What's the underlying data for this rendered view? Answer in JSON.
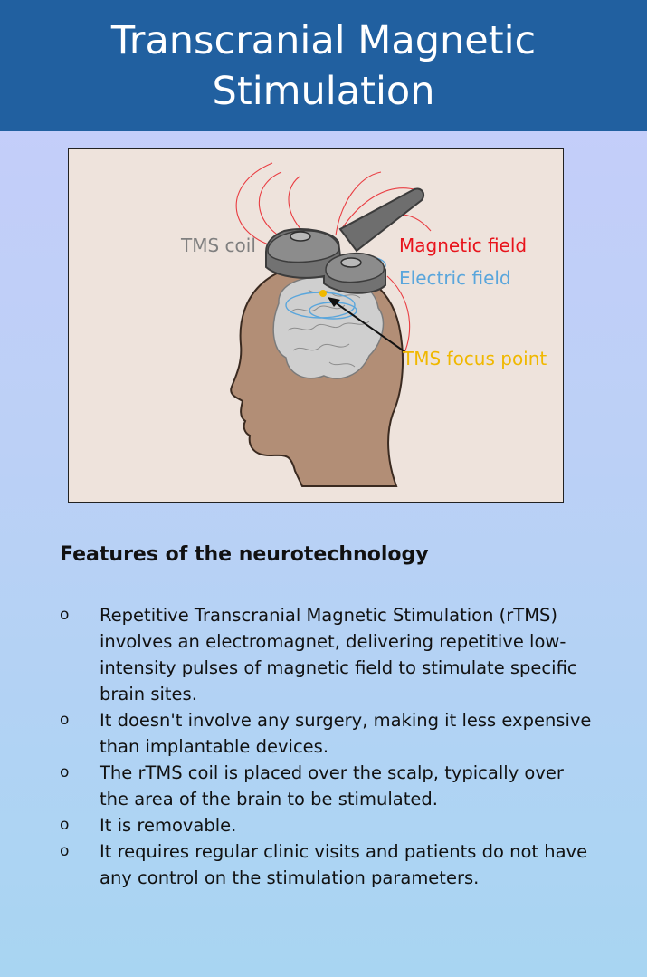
{
  "header": {
    "title": "Transcranial Magnetic Stimulation"
  },
  "figure": {
    "labels": {
      "coil": "TMS coil",
      "magnetic": "Magnetic field",
      "electric": "Electric field",
      "focus": "TMS focus point"
    },
    "colors": {
      "coil": "#808080",
      "magnetic": "#e8141c",
      "electric": "#5aa6dc",
      "focus": "#f0b800"
    }
  },
  "features": {
    "title": "Features of the neurotechnology",
    "bullet": "o",
    "items": [
      "Repetitive Transcranial Magnetic Stimulation (rTMS) involves an electromagnet, delivering repetitive low-intensity pulses of magnetic field to stimulate specific brain sites.",
      "It doesn't involve any surgery, making it less expensive than implantable devices.",
      "The rTMS coil is placed over the scalp, typically over the area of the brain to be stimulated.",
      "It is removable.",
      "It requires regular clinic visits and patients do not have any control on the stimulation parameters."
    ]
  }
}
